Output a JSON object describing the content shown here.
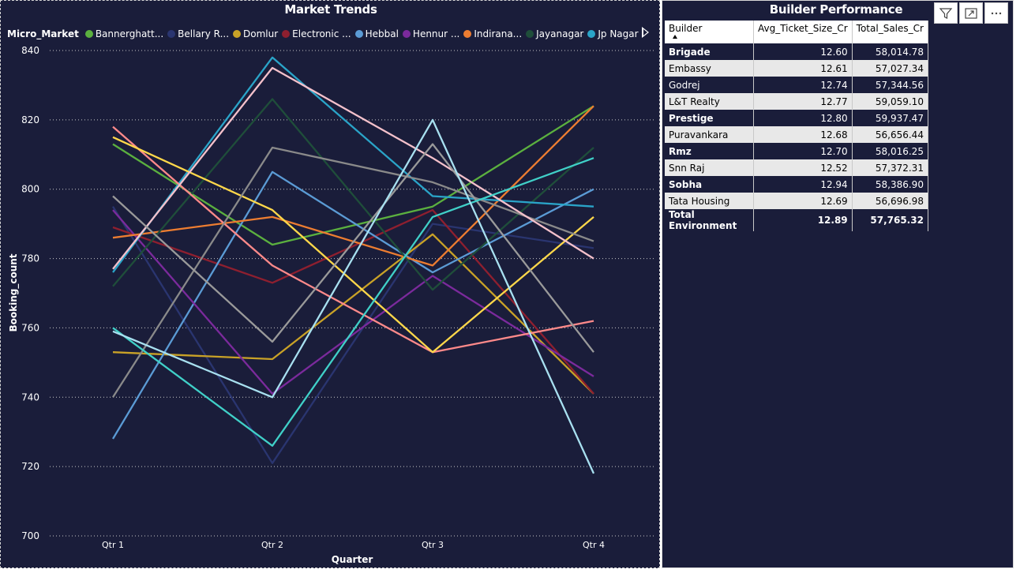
{
  "market_trends": {
    "title": "Market Trends",
    "legend_title": "Micro_Market",
    "legend_items": [
      {
        "label": "Bannerghatt...",
        "color": "#5bb03f"
      },
      {
        "label": "Bellary R...",
        "color": "#2a3570"
      },
      {
        "label": "Domlur",
        "color": "#c9a227"
      },
      {
        "label": "Electronic ...",
        "color": "#8e1f2f"
      },
      {
        "label": "Hebbal",
        "color": "#5b9bd5"
      },
      {
        "label": "Hennur ...",
        "color": "#7b2a9c"
      },
      {
        "label": "Indirana...",
        "color": "#ed7d31"
      },
      {
        "label": "Jayanagar",
        "color": "#1f4e3a"
      },
      {
        "label": "Jp Nagar",
        "color": "#2aa4c8"
      }
    ]
  },
  "chart_data": {
    "type": "line",
    "title": "Market Trends",
    "xlabel": "Quarter",
    "ylabel": "Booking_count",
    "categories": [
      "Qtr 1",
      "Qtr 2",
      "Qtr 3",
      "Qtr 4"
    ],
    "ylim": [
      700,
      840
    ],
    "yticks": [
      700,
      720,
      740,
      760,
      780,
      800,
      820,
      840
    ],
    "grid": true,
    "legend_position": "top",
    "series": [
      {
        "name": "Bannerghatt...",
        "color": "#5bb03f",
        "values": [
          813,
          784,
          795,
          824
        ]
      },
      {
        "name": "Bellary R...",
        "color": "#2a3570",
        "values": [
          795,
          721,
          790,
          783
        ]
      },
      {
        "name": "Domlur",
        "color": "#c9a227",
        "values": [
          753,
          751,
          787,
          741
        ]
      },
      {
        "name": "Electronic ...",
        "color": "#8e1f2f",
        "values": [
          789,
          773,
          794,
          741
        ]
      },
      {
        "name": "Hebbal",
        "color": "#5b9bd5",
        "values": [
          728,
          805,
          776,
          800
        ]
      },
      {
        "name": "Hennur ...",
        "color": "#7b2a9c",
        "values": [
          794,
          741,
          775,
          746
        ]
      },
      {
        "name": "Indirana...",
        "color": "#ed7d31",
        "values": [
          786,
          792,
          778,
          824
        ]
      },
      {
        "name": "Jayanagar",
        "color": "#1f4e3a",
        "values": [
          772,
          826,
          771,
          812
        ]
      },
      {
        "name": "Jp Nagar",
        "color": "#2aa4c8",
        "values": [
          776,
          838,
          798,
          795
        ]
      },
      {
        "color": "#ff8a8a",
        "values": [
          818,
          778,
          753,
          762
        ]
      },
      {
        "color": "#ffd84a",
        "values": [
          815,
          794,
          753,
          792
        ]
      },
      {
        "color": "#8a8a8a",
        "values": [
          740,
          812,
          802,
          785
        ]
      },
      {
        "color": "#f4c1cb",
        "values": [
          777,
          835,
          809,
          780
        ]
      },
      {
        "color": "#9a9a9a",
        "values": [
          798,
          756,
          813,
          753
        ]
      },
      {
        "color": "#40d0c8",
        "values": [
          760,
          726,
          792,
          809
        ]
      },
      {
        "color": "#a8e0f0",
        "values": [
          759,
          740,
          820,
          718
        ]
      }
    ]
  },
  "builder_performance": {
    "title": "Builder Performance",
    "columns": [
      "Builder",
      "Avg_Ticket_Size_Cr",
      "Total_Sales_Cr"
    ],
    "rows": [
      {
        "builder": "Brigade",
        "avg": "12.60",
        "total": "58,014.78"
      },
      {
        "builder": "Embassy",
        "avg": "12.61",
        "total": "57,027.34"
      },
      {
        "builder": "Godrej",
        "avg": "12.74",
        "total": "57,344.56"
      },
      {
        "builder": "L&T Realty",
        "avg": "12.77",
        "total": "59,059.10"
      },
      {
        "builder": "Prestige",
        "avg": "12.80",
        "total": "59,937.47"
      },
      {
        "builder": "Puravankara",
        "avg": "12.68",
        "total": "56,656.44"
      },
      {
        "builder": "Rmz",
        "avg": "12.70",
        "total": "58,016.25"
      },
      {
        "builder": "Snn Raj",
        "avg": "12.52",
        "total": "57,372.31"
      },
      {
        "builder": "Sobha",
        "avg": "12.94",
        "total": "58,386.90"
      },
      {
        "builder": "Tata Housing",
        "avg": "12.69",
        "total": "56,696.98"
      }
    ],
    "total_row": {
      "builder": "Total Environment",
      "avg": "12.89",
      "total": "57,765.32"
    }
  },
  "toolbar": {
    "icons": [
      "filter-icon",
      "focus-mode-icon",
      "more-options-icon"
    ]
  }
}
